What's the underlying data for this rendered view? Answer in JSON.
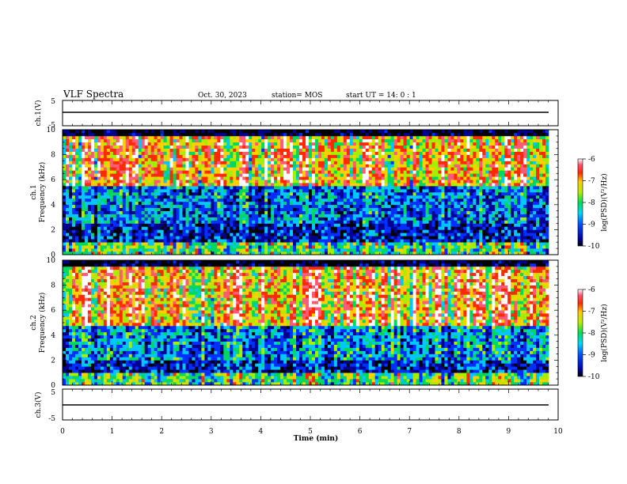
{
  "header": {
    "title": "VLF Spectra",
    "date": "Oct. 30, 2023",
    "station": "station= MOS",
    "start": "start  UT =   14: 0  : 1"
  },
  "chart_data": [
    {
      "type": "line",
      "ylabel": "ch.1(V)",
      "yticks": [
        "5",
        "-5"
      ],
      "ylim": [
        -5,
        5
      ],
      "xlim": [
        0,
        10
      ],
      "value": 0
    },
    {
      "type": "heatmap",
      "ylabel": "Frequency (kHz)",
      "channel_label": "ch.1",
      "yticks": [
        "0",
        "2",
        "4",
        "6",
        "8",
        "10"
      ],
      "ylim": [
        0,
        10
      ],
      "xlim": [
        0,
        10
      ],
      "colorbar": {
        "label": "log(PSD)(V²/Hz)",
        "ticks": [
          "-6",
          "-7",
          "-8",
          "-9",
          "-10"
        ],
        "range": [
          -10,
          -6
        ]
      }
    },
    {
      "type": "heatmap",
      "ylabel": "Frequency (kHz)",
      "channel_label": "ch.2",
      "yticks": [
        "0",
        "2",
        "4",
        "6",
        "8",
        "10"
      ],
      "ylim": [
        0,
        10
      ],
      "xlim": [
        0,
        10
      ],
      "colorbar": {
        "label": "log(PSD)(V²/Hz)",
        "ticks": [
          "-6",
          "-7",
          "-8",
          "-9",
          "-10"
        ],
        "range": [
          -10,
          -6
        ]
      }
    },
    {
      "type": "line",
      "ylabel": "ch.3(V)",
      "yticks": [
        "5",
        "-5"
      ],
      "ylim": [
        -5,
        5
      ],
      "xlim": [
        0,
        10
      ],
      "value": 0,
      "xlabel": "Time  (min)",
      "xticks": [
        "0",
        "1",
        "2",
        "3",
        "4",
        "5",
        "6",
        "7",
        "8",
        "9",
        "10"
      ]
    }
  ]
}
